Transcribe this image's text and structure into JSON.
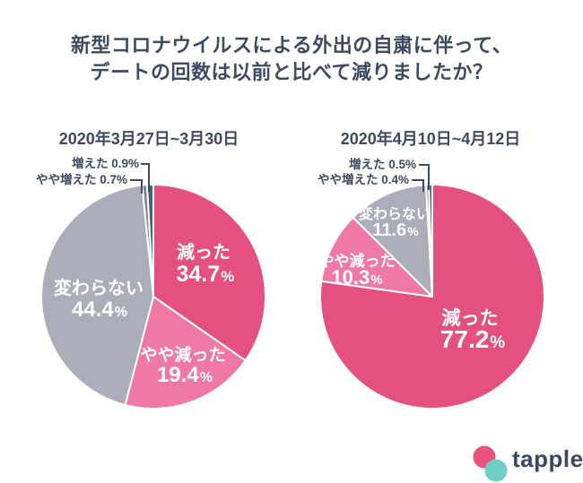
{
  "title": {
    "line1": "新型コロナウイルスによる外出の自粛に伴って、",
    "line2": "デートの回数は以前と比べて減りましたか？"
  },
  "colors": {
    "background": "#FFFFFF",
    "title_text": "#3E4A5F",
    "pie_label_text": "#FFFFFF",
    "callout_text": "#3E4A5F",
    "leader_line": "#3E4A5F",
    "decreased": "#E4517F",
    "slightly_decreased": "#F078A4",
    "unchanged": "#ABAEB8",
    "slightly_increased": "#7E8596",
    "increased": "#515C72",
    "logo_pink": "#E9537E",
    "logo_teal": "#6FCFC4",
    "logo_text": "#3D4760"
  },
  "chart_data": [
    {
      "type": "pie",
      "title": "2020年3月27日~3月30日",
      "start_angle": "12-oclock",
      "direction": "clockwise",
      "legend_position": "none",
      "slices": [
        {
          "key": "decreased",
          "label": "減った",
          "value": 34.7,
          "display": "34.7%",
          "color": "#E4517F",
          "label_style": "inside"
        },
        {
          "key": "slightly-decreased",
          "label": "やや減った",
          "value": 19.4,
          "display": "19.4%",
          "color": "#F078A4",
          "label_style": "inside"
        },
        {
          "key": "unchanged",
          "label": "変わらない",
          "value": 44.4,
          "display": "44.4%",
          "color": "#ABAEB8",
          "label_style": "inside"
        },
        {
          "key": "slightly-increased",
          "label": "やや増えた",
          "value": 0.7,
          "display": "0.7%",
          "color": "#7E8596",
          "label_style": "callout"
        },
        {
          "key": "increased",
          "label": "増えた",
          "value": 0.9,
          "display": "0.9%",
          "color": "#515C72",
          "label_style": "callout"
        }
      ]
    },
    {
      "type": "pie",
      "title": "2020年4月10日~4月12日",
      "start_angle": "12-oclock",
      "direction": "clockwise",
      "legend_position": "none",
      "slices": [
        {
          "key": "decreased",
          "label": "減った",
          "value": 77.2,
          "display": "77.2%",
          "color": "#E4517F",
          "label_style": "inside"
        },
        {
          "key": "slightly-decreased",
          "label": "やや減った",
          "value": 10.3,
          "display": "10.3%",
          "color": "#F078A4",
          "label_style": "inside"
        },
        {
          "key": "unchanged",
          "label": "変わらない",
          "value": 11.6,
          "display": "11.6%",
          "color": "#ABAEB8",
          "label_style": "inside"
        },
        {
          "key": "slightly-increased",
          "label": "やや増えた",
          "value": 0.4,
          "display": "0.4%",
          "color": "#7E8596",
          "label_style": "callout"
        },
        {
          "key": "increased",
          "label": "増えた",
          "value": 0.5,
          "display": "0.5%",
          "color": "#515C72",
          "label_style": "callout"
        }
      ]
    }
  ],
  "logo": {
    "text": "tapple"
  }
}
